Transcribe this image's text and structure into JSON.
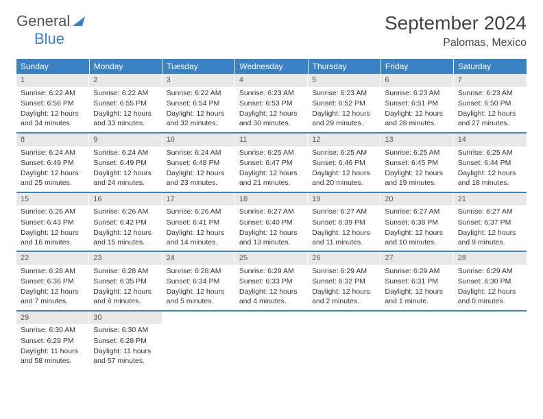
{
  "logo": {
    "word1": "General",
    "word2": "Blue"
  },
  "title": "September 2024",
  "location": "Palomas, Mexico",
  "colors": {
    "header_bg": "#3b82c4",
    "header_fg": "#ffffff",
    "daynum_bg": "#e8e8e8",
    "row_border": "#3b82c4",
    "text": "#333333",
    "logo_gray": "#555555",
    "logo_blue": "#3b82c4",
    "background": "#ffffff"
  },
  "typography": {
    "title_fontsize": 28,
    "location_fontsize": 16,
    "dayheader_fontsize": 12,
    "cell_fontsize": 10.5,
    "logo_fontsize": 22
  },
  "layout": {
    "columns": 7,
    "weeks": 5,
    "first_day_column": 0
  },
  "day_headers": [
    "Sunday",
    "Monday",
    "Tuesday",
    "Wednesday",
    "Thursday",
    "Friday",
    "Saturday"
  ],
  "days": [
    {
      "n": "1",
      "sunrise": "Sunrise: 6:22 AM",
      "sunset": "Sunset: 6:56 PM",
      "daylight": "Daylight: 12 hours and 34 minutes."
    },
    {
      "n": "2",
      "sunrise": "Sunrise: 6:22 AM",
      "sunset": "Sunset: 6:55 PM",
      "daylight": "Daylight: 12 hours and 33 minutes."
    },
    {
      "n": "3",
      "sunrise": "Sunrise: 6:22 AM",
      "sunset": "Sunset: 6:54 PM",
      "daylight": "Daylight: 12 hours and 32 minutes."
    },
    {
      "n": "4",
      "sunrise": "Sunrise: 6:23 AM",
      "sunset": "Sunset: 6:53 PM",
      "daylight": "Daylight: 12 hours and 30 minutes."
    },
    {
      "n": "5",
      "sunrise": "Sunrise: 6:23 AM",
      "sunset": "Sunset: 6:52 PM",
      "daylight": "Daylight: 12 hours and 29 minutes."
    },
    {
      "n": "6",
      "sunrise": "Sunrise: 6:23 AM",
      "sunset": "Sunset: 6:51 PM",
      "daylight": "Daylight: 12 hours and 28 minutes."
    },
    {
      "n": "7",
      "sunrise": "Sunrise: 6:23 AM",
      "sunset": "Sunset: 6:50 PM",
      "daylight": "Daylight: 12 hours and 27 minutes."
    },
    {
      "n": "8",
      "sunrise": "Sunrise: 6:24 AM",
      "sunset": "Sunset: 6:49 PM",
      "daylight": "Daylight: 12 hours and 25 minutes."
    },
    {
      "n": "9",
      "sunrise": "Sunrise: 6:24 AM",
      "sunset": "Sunset: 6:49 PM",
      "daylight": "Daylight: 12 hours and 24 minutes."
    },
    {
      "n": "10",
      "sunrise": "Sunrise: 6:24 AM",
      "sunset": "Sunset: 6:48 PM",
      "daylight": "Daylight: 12 hours and 23 minutes."
    },
    {
      "n": "11",
      "sunrise": "Sunrise: 6:25 AM",
      "sunset": "Sunset: 6:47 PM",
      "daylight": "Daylight: 12 hours and 21 minutes."
    },
    {
      "n": "12",
      "sunrise": "Sunrise: 6:25 AM",
      "sunset": "Sunset: 6:46 PM",
      "daylight": "Daylight: 12 hours and 20 minutes."
    },
    {
      "n": "13",
      "sunrise": "Sunrise: 6:25 AM",
      "sunset": "Sunset: 6:45 PM",
      "daylight": "Daylight: 12 hours and 19 minutes."
    },
    {
      "n": "14",
      "sunrise": "Sunrise: 6:25 AM",
      "sunset": "Sunset: 6:44 PM",
      "daylight": "Daylight: 12 hours and 18 minutes."
    },
    {
      "n": "15",
      "sunrise": "Sunrise: 6:26 AM",
      "sunset": "Sunset: 6:43 PM",
      "daylight": "Daylight: 12 hours and 16 minutes."
    },
    {
      "n": "16",
      "sunrise": "Sunrise: 6:26 AM",
      "sunset": "Sunset: 6:42 PM",
      "daylight": "Daylight: 12 hours and 15 minutes."
    },
    {
      "n": "17",
      "sunrise": "Sunrise: 6:26 AM",
      "sunset": "Sunset: 6:41 PM",
      "daylight": "Daylight: 12 hours and 14 minutes."
    },
    {
      "n": "18",
      "sunrise": "Sunrise: 6:27 AM",
      "sunset": "Sunset: 6:40 PM",
      "daylight": "Daylight: 12 hours and 13 minutes."
    },
    {
      "n": "19",
      "sunrise": "Sunrise: 6:27 AM",
      "sunset": "Sunset: 6:39 PM",
      "daylight": "Daylight: 12 hours and 11 minutes."
    },
    {
      "n": "20",
      "sunrise": "Sunrise: 6:27 AM",
      "sunset": "Sunset: 6:38 PM",
      "daylight": "Daylight: 12 hours and 10 minutes."
    },
    {
      "n": "21",
      "sunrise": "Sunrise: 6:27 AM",
      "sunset": "Sunset: 6:37 PM",
      "daylight": "Daylight: 12 hours and 9 minutes."
    },
    {
      "n": "22",
      "sunrise": "Sunrise: 6:28 AM",
      "sunset": "Sunset: 6:36 PM",
      "daylight": "Daylight: 12 hours and 7 minutes."
    },
    {
      "n": "23",
      "sunrise": "Sunrise: 6:28 AM",
      "sunset": "Sunset: 6:35 PM",
      "daylight": "Daylight: 12 hours and 6 minutes."
    },
    {
      "n": "24",
      "sunrise": "Sunrise: 6:28 AM",
      "sunset": "Sunset: 6:34 PM",
      "daylight": "Daylight: 12 hours and 5 minutes."
    },
    {
      "n": "25",
      "sunrise": "Sunrise: 6:29 AM",
      "sunset": "Sunset: 6:33 PM",
      "daylight": "Daylight: 12 hours and 4 minutes."
    },
    {
      "n": "26",
      "sunrise": "Sunrise: 6:29 AM",
      "sunset": "Sunset: 6:32 PM",
      "daylight": "Daylight: 12 hours and 2 minutes."
    },
    {
      "n": "27",
      "sunrise": "Sunrise: 6:29 AM",
      "sunset": "Sunset: 6:31 PM",
      "daylight": "Daylight: 12 hours and 1 minute."
    },
    {
      "n": "28",
      "sunrise": "Sunrise: 6:29 AM",
      "sunset": "Sunset: 6:30 PM",
      "daylight": "Daylight: 12 hours and 0 minutes."
    },
    {
      "n": "29",
      "sunrise": "Sunrise: 6:30 AM",
      "sunset": "Sunset: 6:29 PM",
      "daylight": "Daylight: 11 hours and 58 minutes."
    },
    {
      "n": "30",
      "sunrise": "Sunrise: 6:30 AM",
      "sunset": "Sunset: 6:28 PM",
      "daylight": "Daylight: 11 hours and 57 minutes."
    }
  ]
}
